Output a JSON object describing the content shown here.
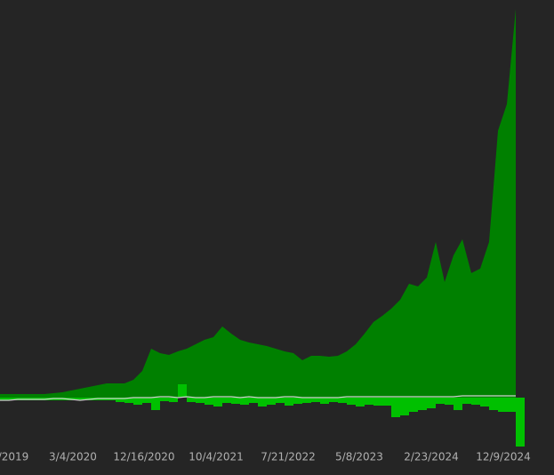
{
  "chart_data": {
    "type": "area",
    "x": [
      0,
      1,
      2,
      3,
      4,
      5,
      6,
      7,
      8,
      9,
      10,
      11,
      12,
      13,
      14,
      15,
      16,
      17,
      18,
      19,
      20,
      21,
      22,
      23,
      24,
      25,
      26,
      27,
      28,
      29,
      30,
      31,
      32,
      33,
      34,
      35,
      36,
      37,
      38,
      39,
      40,
      41,
      42,
      43,
      44,
      45,
      46,
      47,
      48,
      49,
      50,
      51,
      52,
      53,
      54,
      55,
      56,
      57,
      58
    ],
    "series": [
      {
        "type": "area",
        "color": "#008000",
        "values": [
          4,
          4,
          4,
          4,
          4,
          4,
          5,
          6,
          8,
          10,
          12,
          14,
          16,
          16,
          16,
          20,
          30,
          55,
          50,
          48,
          52,
          55,
          60,
          65,
          68,
          80,
          72,
          65,
          62,
          60,
          58,
          55,
          52,
          50,
          42,
          47,
          47,
          46,
          47,
          52,
          60,
          72,
          85,
          92,
          100,
          110,
          128,
          125,
          135,
          175,
          130,
          160,
          178,
          140,
          145,
          175,
          300,
          330,
          437
        ]
      },
      {
        "type": "bar",
        "color": "#00c000",
        "values": [
          -3,
          -3,
          -3,
          -3,
          -3,
          -3,
          -3,
          -3,
          -3,
          -3,
          -3,
          -3,
          -3,
          -5,
          -6,
          -8,
          -6,
          -14,
          -4,
          -5,
          15,
          -5,
          -6,
          -8,
          -10,
          -6,
          -7,
          -8,
          -6,
          -10,
          -8,
          -6,
          -9,
          -7,
          -6,
          -5,
          -7,
          -5,
          -6,
          -8,
          -10,
          -8,
          -9,
          -9,
          -22,
          -20,
          -16,
          -14,
          -12,
          -7,
          -8,
          -14,
          -7,
          -8,
          -10,
          -14,
          -16,
          -16,
          -55
        ]
      },
      {
        "type": "line",
        "color": "#d0d0d0",
        "values": [
          -3,
          -3,
          -2,
          -2,
          -2,
          -2,
          -1,
          -1,
          -2,
          -3,
          -2,
          -1,
          -1,
          -1,
          -1,
          0,
          0,
          0,
          1,
          1,
          0,
          1,
          0,
          0,
          1,
          1,
          1,
          0,
          1,
          0,
          0,
          0,
          1,
          1,
          0,
          0,
          0,
          0,
          0,
          1,
          1,
          1,
          1,
          1,
          1,
          1,
          1,
          1,
          1,
          1,
          1,
          1,
          2,
          2,
          2,
          2,
          2,
          2,
          2
        ]
      }
    ],
    "xlim": [
      0,
      58.5
    ],
    "ylim": [
      -60,
      437
    ],
    "xticks": [
      {
        "value": 1.5,
        "label": "/2019"
      },
      {
        "value": 8.2,
        "label": "3/4/2020"
      },
      {
        "value": 16.2,
        "label": "12/16/2020"
      },
      {
        "value": 24.3,
        "label": "10/4/2021"
      },
      {
        "value": 32.4,
        "label": "7/21/2022"
      },
      {
        "value": 40.4,
        "label": "5/8/2023"
      },
      {
        "value": 48.5,
        "label": "2/23/2024"
      },
      {
        "value": 56.6,
        "label": "12/9/2024"
      }
    ]
  }
}
